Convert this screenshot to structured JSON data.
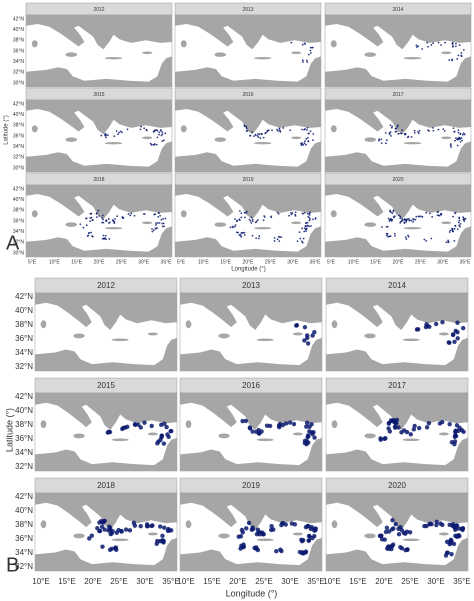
{
  "panel_a": {
    "label": "A",
    "facets": [
      "2012",
      "2013",
      "2014",
      "2015",
      "2016",
      "2017",
      "2018",
      "2019",
      "2020"
    ],
    "y_axis_title": "Latitude (°)",
    "x_axis_title": "Longitude (°)",
    "y_ticks": [
      "42°N",
      "40°N",
      "38°N",
      "36°N",
      "34°N",
      "32°N",
      "30°N"
    ],
    "x_ticks": [
      "5°E",
      "10°E",
      "15°E",
      "20°E",
      "25°E",
      "30°E",
      "35°E"
    ]
  },
  "panel_b": {
    "label": "B",
    "facets": [
      "2012",
      "2013",
      "2014",
      "2015",
      "2016",
      "2017",
      "2018",
      "2019",
      "2020"
    ],
    "y_axis_title": "Latitude (°)",
    "x_axis_title": "Longitude (°)",
    "y_ticks": [
      "42°N",
      "40°N",
      "38°N",
      "36°N",
      "34°N",
      "32°N"
    ],
    "x_ticks": [
      "10°E",
      "15°E",
      "20°E",
      "25°E",
      "30°E",
      "35°E"
    ]
  }
}
